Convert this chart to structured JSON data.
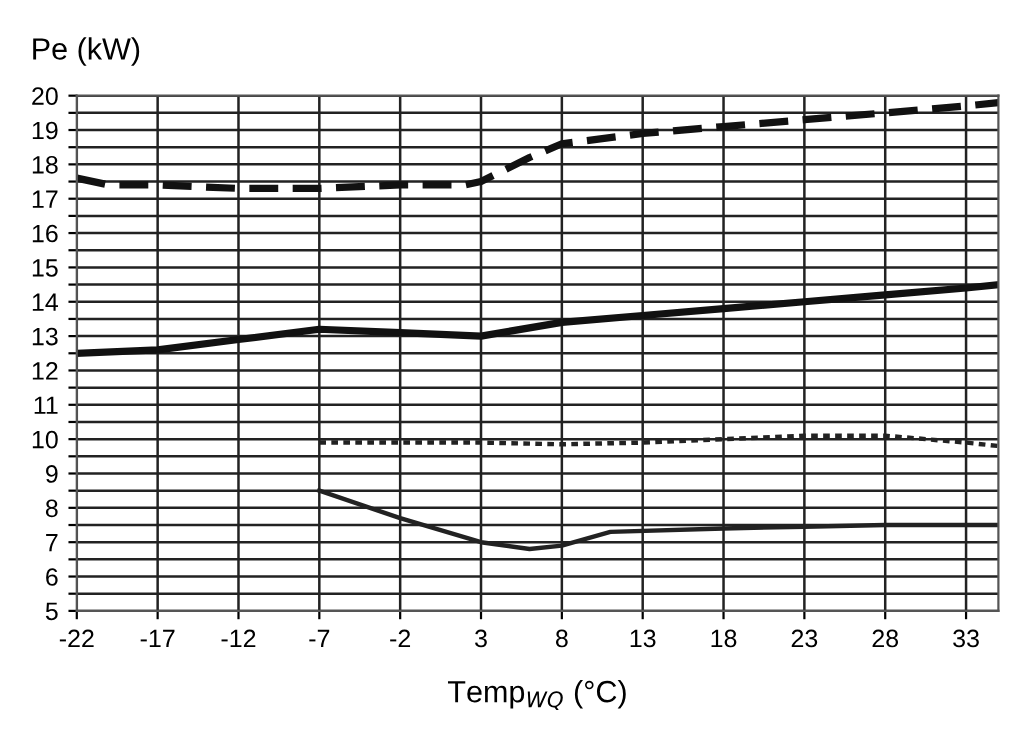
{
  "chart_data": {
    "type": "line",
    "xlabel": "Temp$_{WQ}$ (°C)",
    "ylabel": "Pe (kW)",
    "xlim": [
      -22,
      35
    ],
    "xticks": [
      -22,
      -17,
      -12,
      -7,
      -2,
      3,
      8,
      13,
      18,
      23,
      28,
      33
    ],
    "ylim": [
      5,
      20
    ],
    "yticks": [
      5,
      {
        "value": 5.5,
        "label": null
      },
      6,
      {
        "value": 6.5,
        "label": null
      },
      7,
      {
        "value": 7.5,
        "label": null
      },
      8,
      {
        "value": 8.5,
        "label": null
      },
      9,
      {
        "value": 9.5,
        "label": null
      },
      10,
      {
        "value": 10.5,
        "label": null
      },
      11,
      {
        "value": 11.5,
        "label": null
      },
      12,
      {
        "value": 12.5,
        "label": null
      },
      13,
      {
        "value": 13.5,
        "label": null
      },
      14,
      {
        "value": 14.5,
        "label": null
      },
      15,
      {
        "value": 15.5,
        "label": null
      },
      16,
      {
        "value": 16.5,
        "label": null
      },
      17,
      {
        "value": 17.5,
        "label": null
      },
      18,
      {
        "value": 18.5,
        "label": null
      },
      19,
      {
        "value": 19.5,
        "label": null
      },
      20
    ],
    "grid": true,
    "legend": false,
    "marker": "none",
    "series": [
      {
        "color": "#111111",
        "line_style": "dashed",
        "x": [
          -22,
          -20,
          -17,
          -12,
          -7,
          -2,
          2,
          3,
          6,
          8,
          13,
          18,
          23,
          28,
          33,
          35
        ],
        "values": [
          17.6,
          17.4,
          17.4,
          17.3,
          17.3,
          17.4,
          17.4,
          17.5,
          18.2,
          18.6,
          18.9,
          19.1,
          19.3,
          19.5,
          19.7,
          19.8
        ]
      },
      {
        "color": "#111111",
        "line_style": "solid",
        "x": [
          -22,
          -17,
          -12,
          -7,
          -2,
          3,
          8,
          13,
          18,
          23,
          28,
          33,
          35
        ],
        "values": [
          12.5,
          12.6,
          12.9,
          13.2,
          13.1,
          13.0,
          13.4,
          13.6,
          13.8,
          14.0,
          14.2,
          14.4,
          14.5
        ]
      },
      {
        "color": "#222222",
        "line_style": "dotted",
        "x": [
          -7,
          3,
          8,
          13,
          18,
          23,
          28,
          33,
          35
        ],
        "values": [
          9.9,
          9.9,
          9.85,
          9.9,
          10.0,
          10.1,
          10.1,
          9.9,
          9.8
        ]
      },
      {
        "color": "#222222",
        "line_style": "solid",
        "x": [
          -7,
          -2,
          3,
          6,
          8,
          11,
          18,
          23,
          28,
          35
        ],
        "values": [
          8.5,
          7.7,
          7.0,
          6.8,
          6.9,
          7.3,
          7.4,
          7.45,
          7.5,
          7.5
        ]
      }
    ]
  }
}
